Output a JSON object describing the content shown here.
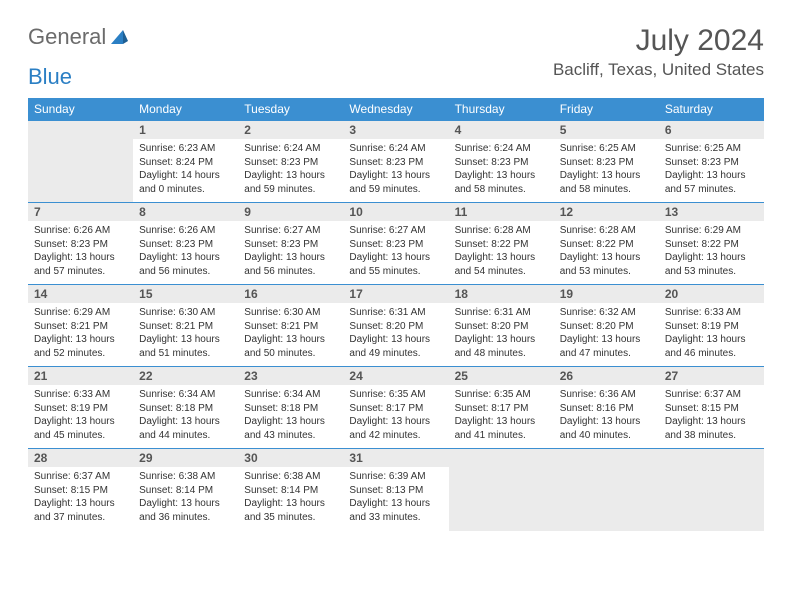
{
  "logo": {
    "text1": "General",
    "text2": "Blue"
  },
  "title": "July 2024",
  "location": "Bacliff, Texas, United States",
  "day_headers": [
    "Sunday",
    "Monday",
    "Tuesday",
    "Wednesday",
    "Thursday",
    "Friday",
    "Saturday"
  ],
  "colors": {
    "header_bg": "#3b8fd1",
    "header_fg": "#ffffff",
    "daynum_bg": "#ebebeb",
    "border": "#3b8fd1",
    "body_bg": "#ffffff",
    "text": "#333333"
  },
  "start_weekday": 1,
  "days": [
    {
      "n": "1",
      "sunrise": "Sunrise: 6:23 AM",
      "sunset": "Sunset: 8:24 PM",
      "daylight": "Daylight: 14 hours and 0 minutes."
    },
    {
      "n": "2",
      "sunrise": "Sunrise: 6:24 AM",
      "sunset": "Sunset: 8:23 PM",
      "daylight": "Daylight: 13 hours and 59 minutes."
    },
    {
      "n": "3",
      "sunrise": "Sunrise: 6:24 AM",
      "sunset": "Sunset: 8:23 PM",
      "daylight": "Daylight: 13 hours and 59 minutes."
    },
    {
      "n": "4",
      "sunrise": "Sunrise: 6:24 AM",
      "sunset": "Sunset: 8:23 PM",
      "daylight": "Daylight: 13 hours and 58 minutes."
    },
    {
      "n": "5",
      "sunrise": "Sunrise: 6:25 AM",
      "sunset": "Sunset: 8:23 PM",
      "daylight": "Daylight: 13 hours and 58 minutes."
    },
    {
      "n": "6",
      "sunrise": "Sunrise: 6:25 AM",
      "sunset": "Sunset: 8:23 PM",
      "daylight": "Daylight: 13 hours and 57 minutes."
    },
    {
      "n": "7",
      "sunrise": "Sunrise: 6:26 AM",
      "sunset": "Sunset: 8:23 PM",
      "daylight": "Daylight: 13 hours and 57 minutes."
    },
    {
      "n": "8",
      "sunrise": "Sunrise: 6:26 AM",
      "sunset": "Sunset: 8:23 PM",
      "daylight": "Daylight: 13 hours and 56 minutes."
    },
    {
      "n": "9",
      "sunrise": "Sunrise: 6:27 AM",
      "sunset": "Sunset: 8:23 PM",
      "daylight": "Daylight: 13 hours and 56 minutes."
    },
    {
      "n": "10",
      "sunrise": "Sunrise: 6:27 AM",
      "sunset": "Sunset: 8:23 PM",
      "daylight": "Daylight: 13 hours and 55 minutes."
    },
    {
      "n": "11",
      "sunrise": "Sunrise: 6:28 AM",
      "sunset": "Sunset: 8:22 PM",
      "daylight": "Daylight: 13 hours and 54 minutes."
    },
    {
      "n": "12",
      "sunrise": "Sunrise: 6:28 AM",
      "sunset": "Sunset: 8:22 PM",
      "daylight": "Daylight: 13 hours and 53 minutes."
    },
    {
      "n": "13",
      "sunrise": "Sunrise: 6:29 AM",
      "sunset": "Sunset: 8:22 PM",
      "daylight": "Daylight: 13 hours and 53 minutes."
    },
    {
      "n": "14",
      "sunrise": "Sunrise: 6:29 AM",
      "sunset": "Sunset: 8:21 PM",
      "daylight": "Daylight: 13 hours and 52 minutes."
    },
    {
      "n": "15",
      "sunrise": "Sunrise: 6:30 AM",
      "sunset": "Sunset: 8:21 PM",
      "daylight": "Daylight: 13 hours and 51 minutes."
    },
    {
      "n": "16",
      "sunrise": "Sunrise: 6:30 AM",
      "sunset": "Sunset: 8:21 PM",
      "daylight": "Daylight: 13 hours and 50 minutes."
    },
    {
      "n": "17",
      "sunrise": "Sunrise: 6:31 AM",
      "sunset": "Sunset: 8:20 PM",
      "daylight": "Daylight: 13 hours and 49 minutes."
    },
    {
      "n": "18",
      "sunrise": "Sunrise: 6:31 AM",
      "sunset": "Sunset: 8:20 PM",
      "daylight": "Daylight: 13 hours and 48 minutes."
    },
    {
      "n": "19",
      "sunrise": "Sunrise: 6:32 AM",
      "sunset": "Sunset: 8:20 PM",
      "daylight": "Daylight: 13 hours and 47 minutes."
    },
    {
      "n": "20",
      "sunrise": "Sunrise: 6:33 AM",
      "sunset": "Sunset: 8:19 PM",
      "daylight": "Daylight: 13 hours and 46 minutes."
    },
    {
      "n": "21",
      "sunrise": "Sunrise: 6:33 AM",
      "sunset": "Sunset: 8:19 PM",
      "daylight": "Daylight: 13 hours and 45 minutes."
    },
    {
      "n": "22",
      "sunrise": "Sunrise: 6:34 AM",
      "sunset": "Sunset: 8:18 PM",
      "daylight": "Daylight: 13 hours and 44 minutes."
    },
    {
      "n": "23",
      "sunrise": "Sunrise: 6:34 AM",
      "sunset": "Sunset: 8:18 PM",
      "daylight": "Daylight: 13 hours and 43 minutes."
    },
    {
      "n": "24",
      "sunrise": "Sunrise: 6:35 AM",
      "sunset": "Sunset: 8:17 PM",
      "daylight": "Daylight: 13 hours and 42 minutes."
    },
    {
      "n": "25",
      "sunrise": "Sunrise: 6:35 AM",
      "sunset": "Sunset: 8:17 PM",
      "daylight": "Daylight: 13 hours and 41 minutes."
    },
    {
      "n": "26",
      "sunrise": "Sunrise: 6:36 AM",
      "sunset": "Sunset: 8:16 PM",
      "daylight": "Daylight: 13 hours and 40 minutes."
    },
    {
      "n": "27",
      "sunrise": "Sunrise: 6:37 AM",
      "sunset": "Sunset: 8:15 PM",
      "daylight": "Daylight: 13 hours and 38 minutes."
    },
    {
      "n": "28",
      "sunrise": "Sunrise: 6:37 AM",
      "sunset": "Sunset: 8:15 PM",
      "daylight": "Daylight: 13 hours and 37 minutes."
    },
    {
      "n": "29",
      "sunrise": "Sunrise: 6:38 AM",
      "sunset": "Sunset: 8:14 PM",
      "daylight": "Daylight: 13 hours and 36 minutes."
    },
    {
      "n": "30",
      "sunrise": "Sunrise: 6:38 AM",
      "sunset": "Sunset: 8:14 PM",
      "daylight": "Daylight: 13 hours and 35 minutes."
    },
    {
      "n": "31",
      "sunrise": "Sunrise: 6:39 AM",
      "sunset": "Sunset: 8:13 PM",
      "daylight": "Daylight: 13 hours and 33 minutes."
    }
  ]
}
